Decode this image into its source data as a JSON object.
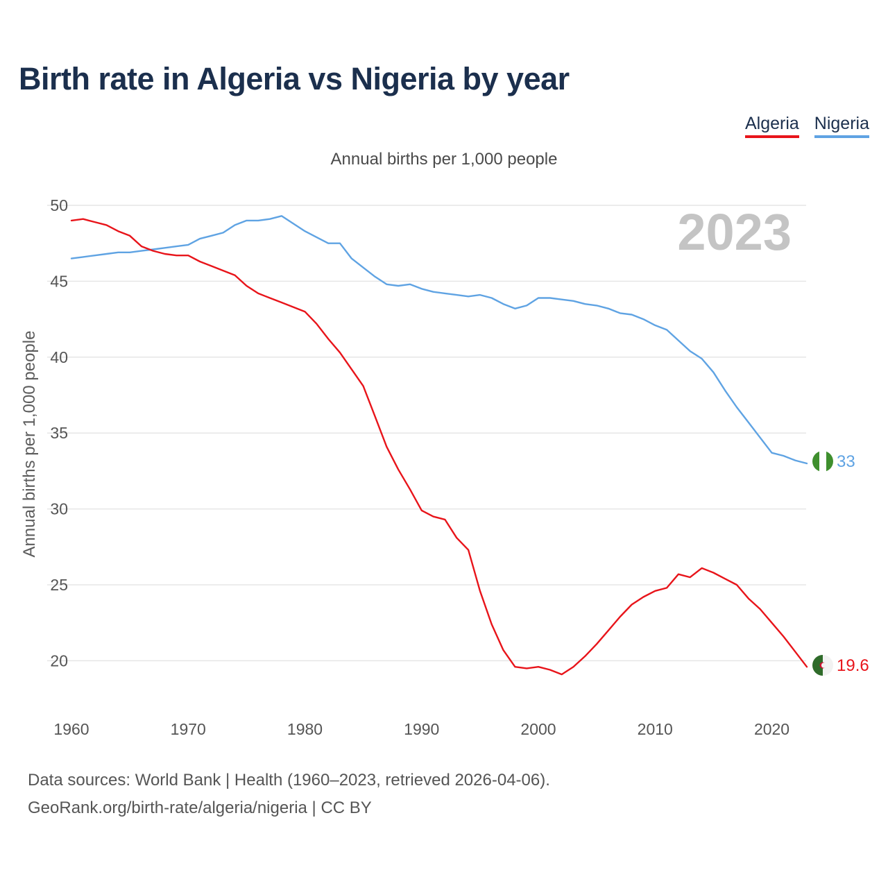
{
  "title": "Birth rate in Algeria vs Nigeria by year",
  "legend": {
    "algeria": "Algeria",
    "nigeria": "Nigeria"
  },
  "subtitle": "Annual births per 1,000 people",
  "year_display": "2023",
  "colors": {
    "algeria": "#e8141a",
    "nigeria": "#5fa3e3",
    "grid": "#e6e6e6"
  },
  "footer": {
    "line1": "Data sources: World Bank | Health (1960–2023, retrieved 2026-04-06).",
    "line2": "GeoRank.org/birth-rate/algeria/nigeria | CC BY"
  },
  "chart_data": {
    "type": "line",
    "title": "Birth rate in Algeria vs Nigeria by year",
    "xlabel": "",
    "ylabel": "Annual births per 1,000 people",
    "xlim": [
      1960,
      2023
    ],
    "ylim": [
      16.5,
      50
    ],
    "yticks": [
      20,
      25,
      30,
      35,
      40,
      45,
      50
    ],
    "xticks": [
      1960,
      1970,
      1980,
      1990,
      2000,
      2010,
      2020
    ],
    "grid": true,
    "legend_position": "top-right",
    "x": [
      1960,
      1961,
      1962,
      1963,
      1964,
      1965,
      1966,
      1967,
      1968,
      1969,
      1970,
      1971,
      1972,
      1973,
      1974,
      1975,
      1976,
      1977,
      1978,
      1979,
      1980,
      1981,
      1982,
      1983,
      1984,
      1985,
      1986,
      1987,
      1988,
      1989,
      1990,
      1991,
      1992,
      1993,
      1994,
      1995,
      1996,
      1997,
      1998,
      1999,
      2000,
      2001,
      2002,
      2003,
      2004,
      2005,
      2006,
      2007,
      2008,
      2009,
      2010,
      2011,
      2012,
      2013,
      2014,
      2015,
      2016,
      2017,
      2018,
      2019,
      2020,
      2021,
      2022,
      2023
    ],
    "series": [
      {
        "name": "Algeria",
        "end_label": "19.6",
        "values": [
          49.0,
          49.1,
          48.9,
          48.7,
          48.3,
          48.0,
          47.3,
          47.0,
          46.8,
          46.7,
          46.7,
          46.3,
          46.0,
          45.7,
          45.4,
          44.7,
          44.2,
          43.9,
          43.6,
          43.3,
          43.0,
          42.2,
          41.2,
          40.3,
          39.2,
          38.1,
          36.1,
          34.1,
          32.6,
          31.3,
          29.9,
          29.5,
          29.3,
          28.1,
          27.3,
          24.6,
          22.4,
          20.7,
          19.6,
          19.5,
          19.6,
          19.4,
          19.1,
          19.6,
          20.3,
          21.1,
          22.0,
          22.9,
          23.7,
          24.2,
          24.6,
          24.8,
          25.7,
          25.5,
          26.1,
          25.8,
          25.4,
          25.0,
          24.1,
          23.4,
          22.5,
          21.6,
          20.6,
          19.6
        ]
      },
      {
        "name": "Nigeria",
        "end_label": "33",
        "values": [
          46.5,
          46.6,
          46.7,
          46.8,
          46.9,
          46.9,
          47.0,
          47.1,
          47.2,
          47.3,
          47.4,
          47.8,
          48.0,
          48.2,
          48.7,
          49.0,
          49.0,
          49.1,
          49.3,
          48.8,
          48.3,
          47.9,
          47.5,
          47.5,
          46.5,
          45.9,
          45.3,
          44.8,
          44.7,
          44.8,
          44.5,
          44.3,
          44.2,
          44.1,
          44.0,
          44.1,
          43.9,
          43.5,
          43.2,
          43.4,
          43.9,
          43.9,
          43.8,
          43.7,
          43.5,
          43.4,
          43.2,
          42.9,
          42.8,
          42.5,
          42.1,
          41.8,
          41.1,
          40.4,
          39.9,
          39.0,
          37.8,
          36.7,
          35.7,
          34.7,
          33.7,
          33.5,
          33.2,
          33.0
        ]
      }
    ]
  }
}
